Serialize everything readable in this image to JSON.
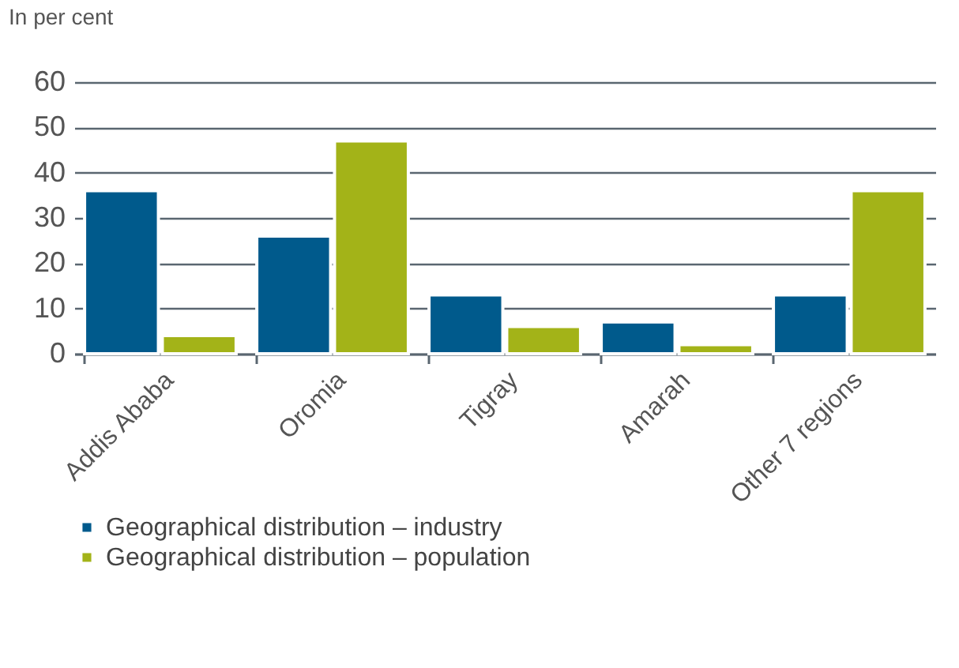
{
  "chart_data": {
    "type": "bar",
    "ylabel": "In per cent",
    "categories": [
      "Addis Ababa",
      "Oromia",
      "Tigray",
      "Amarah",
      "Other 7 regions"
    ],
    "series": [
      {
        "name": "Geographical distribution – industry",
        "color": "#005a8c",
        "values": [
          36,
          26,
          13,
          7,
          13
        ]
      },
      {
        "name": "Geographical distribution – population",
        "color": "#a3b318",
        "values": [
          4,
          47,
          6,
          2,
          36
        ]
      }
    ],
    "ylim": [
      0,
      60
    ],
    "yticks": [
      0,
      10,
      20,
      30,
      40,
      50,
      60
    ],
    "grid": "y",
    "legend": "bottom left"
  }
}
